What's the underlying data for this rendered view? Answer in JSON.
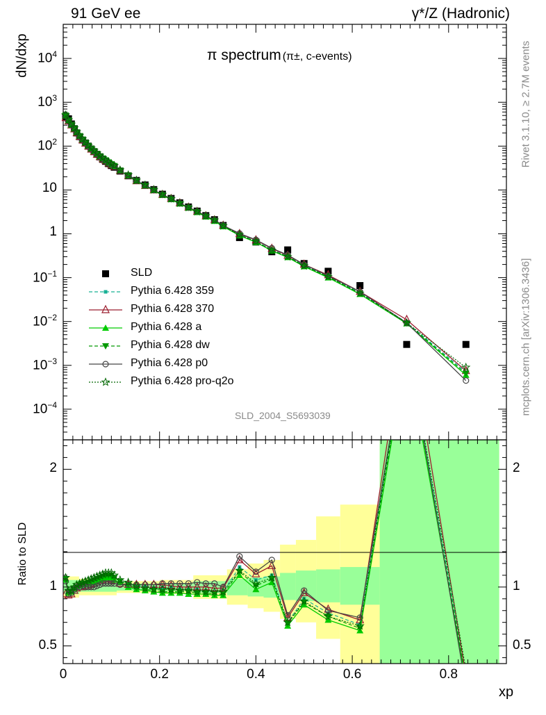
{
  "header": {
    "left": "91 GeV ee",
    "right": "γ*/Z (Hadronic)"
  },
  "side": {
    "rivet": "Rivet 3.1.10, ≥ 2.7M events",
    "mcplots": "mcplots.cern.ch [arXiv:1306.3436]"
  },
  "plot_title": {
    "main": "π spectrum",
    "sub": "(π±, c-events)"
  },
  "analysis_id": "SLD_2004_S5693039",
  "colors": {
    "data": "#000000",
    "p359": "#17b095",
    "p370": "#9b1d2e",
    "pa": "#00cc00",
    "pdw": "#009900",
    "pp0": "#444444",
    "pq2o": "#006600",
    "band_yellow": "#ffff99",
    "band_green": "#99ff99"
  },
  "chart_data": [
    {
      "type": "scatter",
      "ylabel": "dN/dxp",
      "yscale": "log",
      "ylim": [
        2e-05,
        60000
      ],
      "xlim": [
        0,
        0.92
      ],
      "y_ticks": [
        "10^-4",
        "10^-3",
        "10^-2",
        "10^-1",
        "1",
        "10",
        "10^2",
        "10^3",
        "10^4"
      ],
      "legend_placement": "bottom-left",
      "x": [
        0.005,
        0.011,
        0.017,
        0.023,
        0.028,
        0.034,
        0.04,
        0.046,
        0.052,
        0.058,
        0.064,
        0.07,
        0.076,
        0.082,
        0.088,
        0.094,
        0.1,
        0.106,
        0.118,
        0.135,
        0.152,
        0.17,
        0.188,
        0.206,
        0.224,
        0.242,
        0.26,
        0.278,
        0.296,
        0.314,
        0.332,
        0.366,
        0.4,
        0.433,
        0.466,
        0.5,
        0.55,
        0.616,
        0.713,
        0.836
      ],
      "series": [
        {
          "name": "SLD",
          "values": [
            470,
            420,
            320,
            250,
            200,
            165,
            138,
            118,
            100,
            86,
            75,
            65,
            57,
            50,
            45,
            40,
            36,
            33,
            27,
            21,
            16.5,
            13,
            10.2,
            8.0,
            6.4,
            5.1,
            4.1,
            3.3,
            2.6,
            2.1,
            1.55,
            0.82,
            0.65,
            0.39,
            0.43,
            0.21,
            0.14,
            0.066,
            0.003,
            0.003
          ]
        },
        {
          "name": "Pythia 6.428 359",
          "values": [
            505,
            390,
            310,
            255,
            210,
            172,
            143,
            120,
            102,
            88,
            77,
            67,
            59,
            52,
            47,
            42,
            38,
            35,
            28,
            21.5,
            16.5,
            12.8,
            10.1,
            7.9,
            6.3,
            5.0,
            4.0,
            3.25,
            2.55,
            2.05,
            1.54,
            0.97,
            0.68,
            0.43,
            0.31,
            0.19,
            0.11,
            0.046,
            0.0095,
            0.0007
          ]
        },
        {
          "name": "Pythia 6.428 370",
          "values": [
            440,
            370,
            300,
            245,
            200,
            165,
            137,
            116,
            99,
            85,
            74,
            65,
            57,
            51,
            46,
            41,
            37,
            34,
            27.5,
            21,
            16,
            12.5,
            9.9,
            7.8,
            6.3,
            5.0,
            4.0,
            3.2,
            2.55,
            2.05,
            1.55,
            1.0,
            0.72,
            0.46,
            0.32,
            0.2,
            0.115,
            0.048,
            0.011,
            0.00075
          ]
        },
        {
          "name": "Pythia 6.428 a",
          "values": [
            500,
            385,
            305,
            250,
            205,
            170,
            141,
            119,
            101,
            87,
            76,
            66,
            58,
            52,
            47,
            42,
            38,
            35,
            27.5,
            21,
            16,
            12.5,
            9.8,
            7.6,
            6.1,
            4.85,
            3.9,
            3.1,
            2.45,
            1.95,
            1.47,
            0.91,
            0.64,
            0.41,
            0.29,
            0.18,
            0.1,
            0.042,
            0.009,
            0.0006
          ]
        },
        {
          "name": "Pythia 6.428 dw",
          "values": [
            505,
            390,
            310,
            255,
            208,
            172,
            143,
            120,
            102,
            88,
            77,
            67,
            59,
            53,
            48,
            43,
            39,
            35.5,
            28,
            21.5,
            16.2,
            12.6,
            9.9,
            7.7,
            6.15,
            4.9,
            3.95,
            3.15,
            2.5,
            2.0,
            1.5,
            0.93,
            0.66,
            0.42,
            0.3,
            0.185,
            0.105,
            0.044,
            0.0092,
            0.00065
          ]
        },
        {
          "name": "Pythia 6.428 p0",
          "values": [
            495,
            380,
            305,
            250,
            205,
            168,
            140,
            118,
            100,
            86,
            75,
            66,
            58,
            51,
            46,
            41,
            37,
            34,
            27.5,
            21,
            16.2,
            12.6,
            9.9,
            7.8,
            6.3,
            5.0,
            4.0,
            3.25,
            2.55,
            2.05,
            1.55,
            1.02,
            0.73,
            0.47,
            0.33,
            0.2,
            0.11,
            0.048,
            0.0093,
            0.00045
          ]
        },
        {
          "name": "Pythia 6.428 pro-q2o",
          "values": [
            510,
            395,
            315,
            258,
            212,
            175,
            146,
            123,
            104,
            90,
            79,
            69,
            61,
            54,
            48,
            43,
            39,
            36,
            28.5,
            22,
            16.6,
            12.9,
            10.1,
            7.9,
            6.3,
            5.0,
            4.0,
            3.2,
            2.55,
            2.05,
            1.52,
            0.95,
            0.67,
            0.42,
            0.3,
            0.185,
            0.105,
            0.044,
            0.0093,
            0.0009
          ]
        }
      ]
    },
    {
      "type": "line",
      "ylabel": "Ratio to SLD",
      "xlabel": "xp",
      "xlim": [
        0,
        0.92
      ],
      "ylim": [
        0.35,
        2.25
      ],
      "x_ticks": [
        "0",
        "0.2",
        "0.4",
        "0.6",
        "0.8"
      ],
      "y_ticks": [
        "0.5",
        "1",
        "2"
      ],
      "bands": [
        {
          "xlo": 0.0,
          "xhi": 0.033,
          "ylo": 0.94,
          "yhi": 1.06,
          "lo2": 0.91,
          "hi2": 1.09
        },
        {
          "xlo": 0.033,
          "xhi": 0.111,
          "ylo": 0.96,
          "yhi": 1.04,
          "lo2": 0.93,
          "hi2": 1.07
        },
        {
          "xlo": 0.111,
          "xhi": 0.2,
          "ylo": 0.97,
          "yhi": 1.03,
          "lo2": 0.95,
          "hi2": 1.05
        },
        {
          "xlo": 0.2,
          "xhi": 0.27,
          "ylo": 0.965,
          "yhi": 1.035,
          "lo2": 0.94,
          "hi2": 1.06
        },
        {
          "xlo": 0.27,
          "xhi": 0.34,
          "ylo": 0.95,
          "yhi": 1.05,
          "lo2": 0.9,
          "hi2": 1.1
        },
        {
          "xlo": 0.34,
          "xhi": 0.383,
          "ylo": 0.93,
          "yhi": 1.07,
          "lo2": 0.85,
          "hi2": 1.15
        },
        {
          "xlo": 0.383,
          "xhi": 0.416,
          "ylo": 0.92,
          "yhi": 1.08,
          "lo2": 0.82,
          "hi2": 1.2
        },
        {
          "xlo": 0.416,
          "xhi": 0.45,
          "ylo": 0.91,
          "yhi": 1.09,
          "lo2": 0.79,
          "hi2": 1.23
        },
        {
          "xlo": 0.45,
          "xhi": 0.483,
          "ylo": 0.89,
          "yhi": 1.12,
          "lo2": 0.73,
          "hi2": 1.36
        },
        {
          "xlo": 0.483,
          "xhi": 0.525,
          "ylo": 0.88,
          "yhi": 1.14,
          "lo2": 0.7,
          "hi2": 1.4
        },
        {
          "xlo": 0.525,
          "xhi": 0.575,
          "ylo": 0.87,
          "yhi": 1.15,
          "lo2": 0.56,
          "hi2": 1.6
        },
        {
          "xlo": 0.575,
          "xhi": 0.657,
          "ylo": 0.85,
          "yhi": 1.17,
          "lo2": 0.35,
          "hi2": 1.7
        },
        {
          "xlo": 0.657,
          "xhi": 0.905,
          "ylo": 0.35,
          "yhi": 2.25,
          "lo2": 0.35,
          "hi2": 2.25
        }
      ],
      "x": [
        0.005,
        0.011,
        0.017,
        0.023,
        0.028,
        0.034,
        0.04,
        0.046,
        0.052,
        0.058,
        0.064,
        0.07,
        0.076,
        0.082,
        0.088,
        0.094,
        0.1,
        0.106,
        0.118,
        0.135,
        0.152,
        0.17,
        0.188,
        0.206,
        0.224,
        0.242,
        0.26,
        0.278,
        0.296,
        0.314,
        0.332,
        0.366,
        0.4,
        0.433,
        0.466,
        0.5,
        0.55,
        0.616,
        0.713,
        0.836
      ],
      "series": [
        {
          "name": "Pythia 6.428 359",
          "values": [
            1.07,
            0.96,
            0.96,
            0.99,
            1.0,
            1.01,
            1.02,
            1.03,
            1.04,
            1.05,
            1.06,
            1.07,
            1.08,
            1.09,
            1.1,
            1.1,
            1.1,
            1.08,
            1.05,
            1.03,
            1.01,
            1.0,
            0.99,
            0.99,
            0.99,
            0.98,
            0.98,
            0.98,
            0.97,
            0.96,
            0.96,
            1.17,
            1.06,
            1.1,
            0.7,
            0.9,
            0.78,
            0.68,
            3.1,
            0.24
          ]
        },
        {
          "name": "Pythia 6.428 370",
          "values": [
            0.94,
            0.93,
            0.94,
            0.97,
            0.99,
            1.0,
            1.0,
            1.01,
            1.01,
            1.02,
            1.03,
            1.04,
            1.05,
            1.06,
            1.07,
            1.07,
            1.06,
            1.05,
            1.03,
            1.02,
            1.02,
            1.02,
            1.02,
            1.02,
            1.01,
            1.0,
            1.0,
            1.0,
            1.0,
            0.99,
            0.99,
            1.23,
            1.11,
            1.18,
            0.74,
            0.95,
            0.81,
            0.72,
            3.3,
            0.25
          ]
        },
        {
          "name": "Pythia 6.428 a",
          "values": [
            1.06,
            0.95,
            0.96,
            0.99,
            1.0,
            1.01,
            1.02,
            1.02,
            1.03,
            1.04,
            1.04,
            1.05,
            1.06,
            1.07,
            1.08,
            1.08,
            1.08,
            1.06,
            1.04,
            1.0,
            0.98,
            0.97,
            0.96,
            0.95,
            0.95,
            0.95,
            0.94,
            0.94,
            0.94,
            0.93,
            0.93,
            1.1,
            0.98,
            1.04,
            0.67,
            0.85,
            0.72,
            0.63,
            3.0,
            0.2
          ]
        },
        {
          "name": "Pythia 6.428 dw",
          "values": [
            1.07,
            0.96,
            0.96,
            0.99,
            1.0,
            1.02,
            1.03,
            1.03,
            1.04,
            1.05,
            1.06,
            1.07,
            1.08,
            1.09,
            1.1,
            1.1,
            1.1,
            1.08,
            1.05,
            1.02,
            0.99,
            0.98,
            0.97,
            0.96,
            0.96,
            0.96,
            0.96,
            0.95,
            0.95,
            0.94,
            0.94,
            1.13,
            1.01,
            1.07,
            0.69,
            0.87,
            0.75,
            0.65,
            3.05,
            0.22
          ]
        },
        {
          "name": "Pythia 6.428 p0",
          "values": [
            1.05,
            0.94,
            0.95,
            0.98,
            1.0,
            1.0,
            1.01,
            1.0,
            1.0,
            1.0,
            1.0,
            1.01,
            1.02,
            1.03,
            1.03,
            1.03,
            1.03,
            1.03,
            1.02,
            1.02,
            1.02,
            1.02,
            1.02,
            1.03,
            1.03,
            1.03,
            1.03,
            1.04,
            1.03,
            1.03,
            1.0,
            1.26,
            1.13,
            1.23,
            0.76,
            0.97,
            0.8,
            0.74,
            3.1,
            0.15
          ]
        },
        {
          "name": "Pythia 6.428 pro-q2o",
          "values": [
            1.08,
            0.97,
            0.97,
            1.0,
            1.02,
            1.03,
            1.04,
            1.05,
            1.06,
            1.07,
            1.08,
            1.09,
            1.1,
            1.11,
            1.12,
            1.12,
            1.12,
            1.1,
            1.06,
            1.04,
            1.01,
            0.99,
            0.98,
            0.98,
            0.98,
            0.97,
            0.97,
            0.96,
            0.96,
            0.96,
            0.96,
            1.14,
            1.03,
            1.08,
            0.7,
            0.88,
            0.75,
            0.67,
            3.1,
            0.3
          ]
        }
      ]
    }
  ]
}
